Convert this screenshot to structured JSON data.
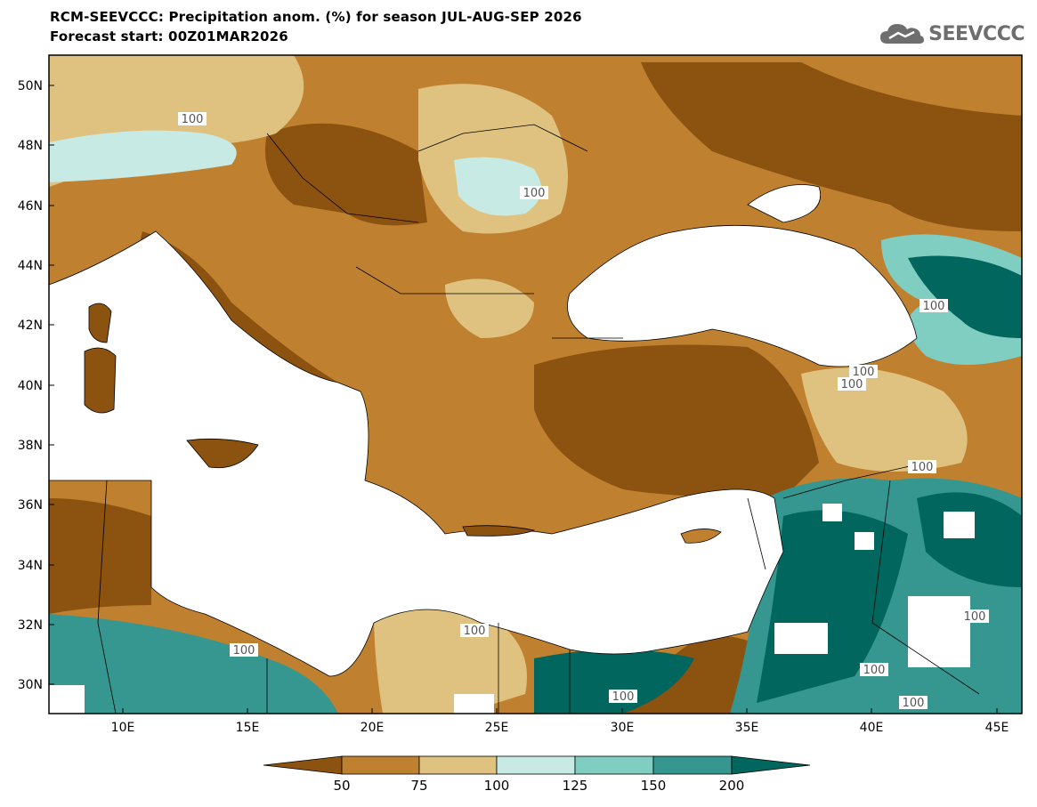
{
  "header": {
    "title": "RCM-SEEVCCC: Precipitation anom. (%) for season JUL-AUG-SEP 2026",
    "subtitle": "Forecast start: 00Z01MAR2026",
    "logo_text": "SEEVCCC"
  },
  "map": {
    "lat_labels": [
      "50N",
      "48N",
      "46N",
      "44N",
      "42N",
      "40N",
      "38N",
      "36N",
      "34N",
      "32N",
      "30N"
    ],
    "lon_labels": [
      "10E",
      "15E",
      "20E",
      "25E",
      "30E",
      "35E",
      "40E",
      "45E"
    ],
    "contour_labels": [
      "100",
      "100",
      "100",
      "100",
      "100",
      "100",
      "100",
      "100",
      "100",
      "100",
      "100",
      "100"
    ]
  },
  "colorbar": {
    "ticks": [
      "50",
      "75",
      "100",
      "125",
      "150",
      "200"
    ],
    "colors": {
      "lt50": "#8c520f",
      "c50_75": "#bf8130",
      "c75_100": "#dfc27f",
      "c100_125": "#c7eae4",
      "c125_150": "#80cdc1",
      "c150_200": "#35978f",
      "gt200": "#01665e"
    }
  }
}
